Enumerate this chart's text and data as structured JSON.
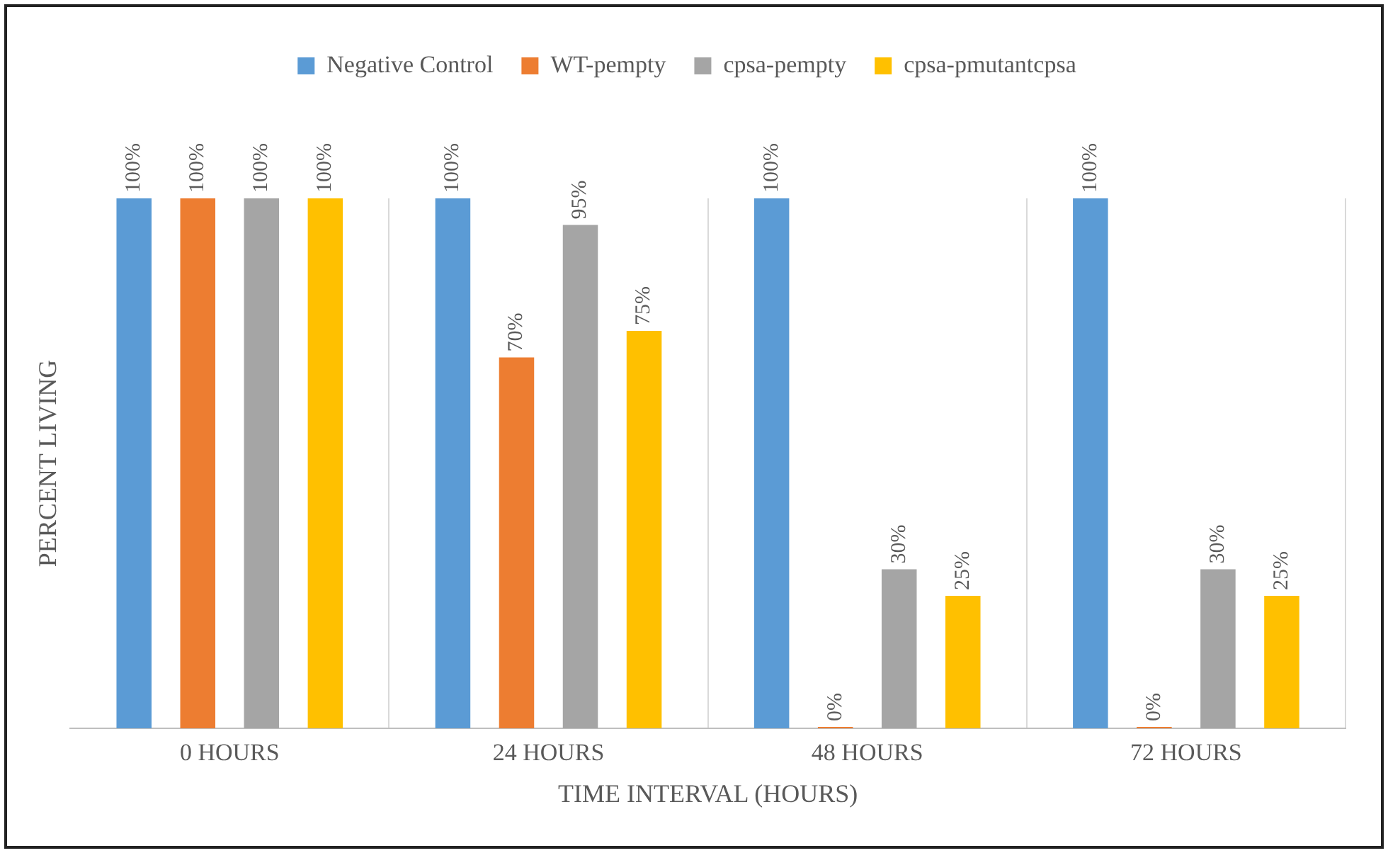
{
  "chart_data": {
    "type": "bar",
    "xlabel": "TIME INTERVAL (HOURS)",
    "ylabel": "PERCENT LIVING",
    "categories": [
      "0 HOURS",
      "24 HOURS",
      "48 HOURS",
      "72 HOURS"
    ],
    "series": [
      {
        "name": "Negative Control",
        "color": "#5b9bd5",
        "values": [
          100,
          100,
          100,
          100
        ],
        "value_labels": [
          "100%",
          "100%",
          "100%",
          "100%"
        ]
      },
      {
        "name": "WT-pempty",
        "color": "#ed7d31",
        "values": [
          100,
          70,
          0,
          0
        ],
        "value_labels": [
          "100%",
          "70%",
          "0%",
          "0%"
        ]
      },
      {
        "name": "cpsa-pempty",
        "color": "#a5a5a5",
        "values": [
          100,
          95,
          30,
          30
        ],
        "value_labels": [
          "100%",
          "95%",
          "30%",
          "30%"
        ]
      },
      {
        "name": "cpsa-pmutantcpsa",
        "color": "#ffc000",
        "values": [
          100,
          75,
          25,
          25
        ],
        "value_labels": [
          "100%",
          "75%",
          "25%",
          "25%"
        ]
      }
    ],
    "grid": "x",
    "legend": "top",
    "tick_labels": "x"
  }
}
